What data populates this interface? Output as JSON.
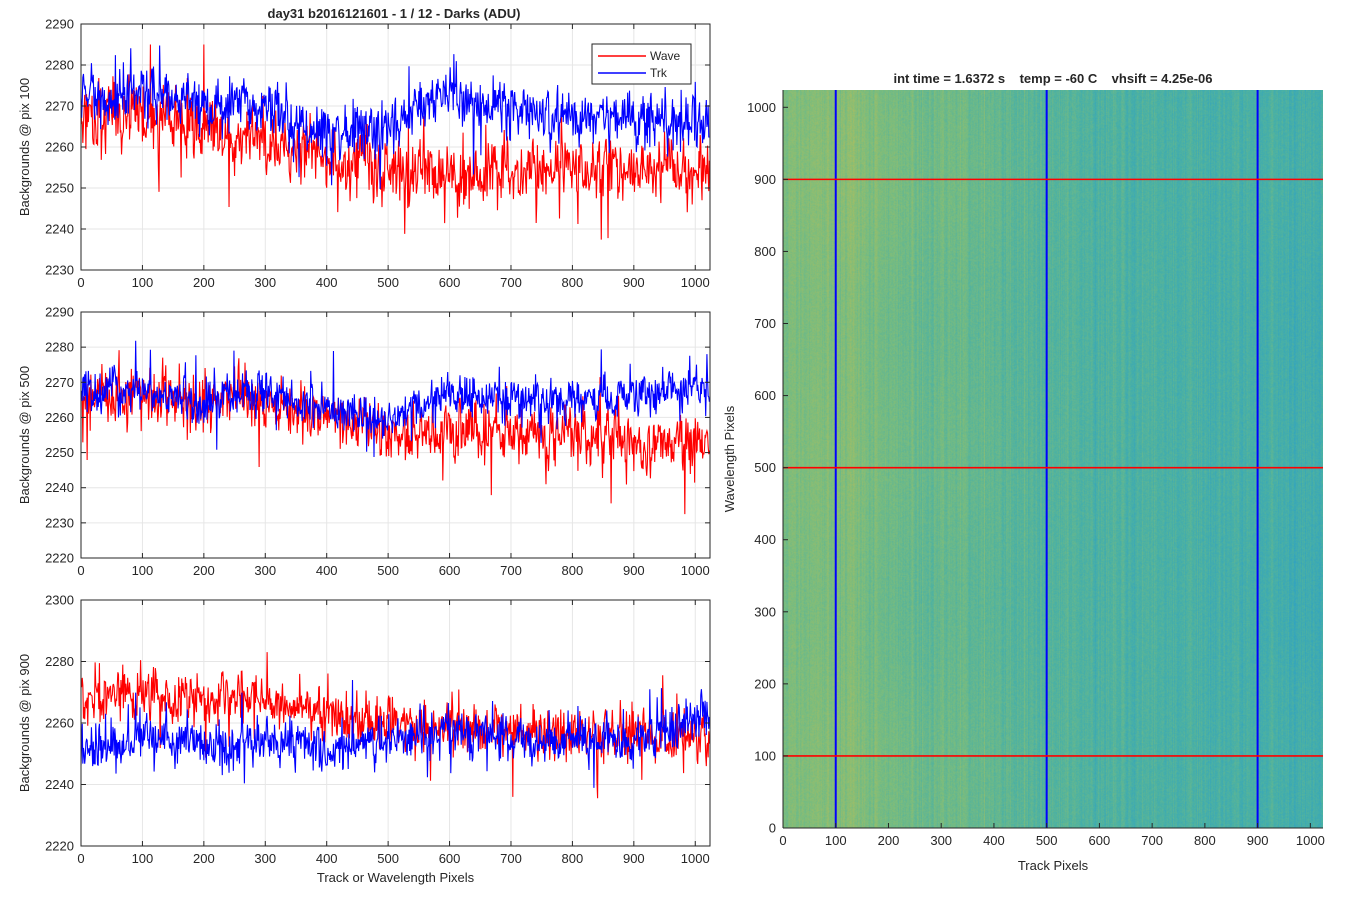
{
  "figure": {
    "title": "day31 b2016121601 - 1 / 12 - Darks (ADU)",
    "colors": {
      "wave": "#ff0000",
      "trk": "#0000ff",
      "grid": "#e6e6e6",
      "axis": "#262626"
    }
  },
  "chart_data": [
    {
      "type": "line",
      "id": "pix100",
      "title": "day31 b2016121601 - 1 / 12 - Darks (ADU)",
      "xlabel": "",
      "ylabel": "Backgrounds @ pix 100",
      "xlim": [
        0,
        1024
      ],
      "ylim": [
        2230,
        2290
      ],
      "xticks": [
        0,
        100,
        200,
        300,
        400,
        500,
        600,
        700,
        800,
        900,
        1000
      ],
      "yticks": [
        2230,
        2240,
        2250,
        2260,
        2270,
        2280,
        2290
      ],
      "grid": true,
      "legend": {
        "position": "top-right",
        "entries": [
          "Wave",
          "Trk"
        ]
      },
      "series": [
        {
          "name": "Wave",
          "color": "#ff0000",
          "points": 1024,
          "mean_profile_x": [
            0,
            100,
            200,
            300,
            400,
            500,
            600,
            700,
            800,
            900,
            1024
          ],
          "mean_profile_y": [
            2268,
            2268,
            2264,
            2262,
            2258,
            2255,
            2254,
            2254,
            2255,
            2255,
            2254
          ],
          "noise_amplitude": 6.5,
          "min": 2230,
          "max": 2285
        },
        {
          "name": "Trk",
          "color": "#0000ff",
          "points": 1024,
          "mean_profile_x": [
            0,
            100,
            200,
            300,
            400,
            500,
            600,
            700,
            800,
            900,
            1024
          ],
          "mean_profile_y": [
            2271,
            2273,
            2271,
            2269,
            2262,
            2266,
            2272,
            2268,
            2267,
            2266,
            2266
          ],
          "noise_amplitude": 5.5,
          "min": 2246,
          "max": 2288
        }
      ]
    },
    {
      "type": "line",
      "id": "pix500",
      "title": "",
      "xlabel": "",
      "ylabel": "Backgrounds @ pix 500",
      "xlim": [
        0,
        1024
      ],
      "ylim": [
        2220,
        2290
      ],
      "xticks": [
        0,
        100,
        200,
        300,
        400,
        500,
        600,
        700,
        800,
        900,
        1000
      ],
      "yticks": [
        2220,
        2230,
        2240,
        2250,
        2260,
        2270,
        2280,
        2290
      ],
      "grid": true,
      "series": [
        {
          "name": "Wave",
          "color": "#ff0000",
          "points": 1024,
          "mean_profile_x": [
            0,
            100,
            200,
            300,
            400,
            500,
            600,
            700,
            800,
            900,
            1024
          ],
          "mean_profile_y": [
            2266,
            2267,
            2265,
            2265,
            2261,
            2255,
            2256,
            2255,
            2256,
            2253,
            2253
          ],
          "noise_amplitude": 6.5,
          "min": 2229,
          "max": 2288
        },
        {
          "name": "Trk",
          "color": "#0000ff",
          "points": 1024,
          "mean_profile_x": [
            0,
            100,
            200,
            300,
            400,
            500,
            600,
            700,
            800,
            900,
            1024
          ],
          "mean_profile_y": [
            2268,
            2268,
            2264,
            2268,
            2263,
            2258,
            2266,
            2265,
            2265,
            2267,
            2268
          ],
          "noise_amplitude": 5,
          "min": 2241,
          "max": 2285
        }
      ]
    },
    {
      "type": "line",
      "id": "pix900",
      "title": "",
      "xlabel": "Track or Wavelength Pixels",
      "ylabel": "Backgrounds @ pix 900",
      "xlim": [
        0,
        1024
      ],
      "ylim": [
        2220,
        2300
      ],
      "xticks": [
        0,
        100,
        200,
        300,
        400,
        500,
        600,
        700,
        800,
        900,
        1000
      ],
      "yticks": [
        2220,
        2240,
        2260,
        2280,
        2300
      ],
      "grid": true,
      "series": [
        {
          "name": "Wave",
          "color": "#ff0000",
          "points": 1024,
          "mean_profile_x": [
            0,
            100,
            200,
            300,
            400,
            500,
            600,
            700,
            800,
            900,
            1024
          ],
          "mean_profile_y": [
            2270,
            2270,
            2268,
            2268,
            2262,
            2260,
            2259,
            2258,
            2257,
            2257,
            2253
          ],
          "noise_amplitude": 6.5,
          "min": 2227,
          "max": 2291
        },
        {
          "name": "Trk",
          "color": "#0000ff",
          "points": 1024,
          "mean_profile_x": [
            0,
            100,
            200,
            300,
            400,
            500,
            600,
            700,
            800,
            900,
            1024
          ],
          "mean_profile_y": [
            2250,
            2255,
            2252,
            2255,
            2250,
            2255,
            2258,
            2255,
            2254,
            2254,
            2263
          ],
          "noise_amplitude": 6,
          "min": 2232,
          "max": 2274
        }
      ]
    },
    {
      "type": "heatmap",
      "id": "image",
      "title": "int time = 1.6372 s    temp = -60 C    vhsift = 4.25e-06",
      "xlabel": "Track Pixels",
      "ylabel": "Wavelength Pixels",
      "xlim": [
        0,
        1024
      ],
      "ylim": [
        0,
        1024
      ],
      "xticks": [
        0,
        100,
        200,
        300,
        400,
        500,
        600,
        700,
        800,
        900,
        1000
      ],
      "yticks": [
        0,
        100,
        200,
        300,
        400,
        500,
        600,
        700,
        800,
        900,
        1000
      ],
      "grid": false,
      "colormap": "parula",
      "colormap_colors": [
        "#2a9fc9",
        "#4bb1a4",
        "#7dbd7c",
        "#b5bd5a"
      ],
      "column_intensity_x": [
        0,
        100,
        200,
        300,
        400,
        500,
        600,
        700,
        800,
        900,
        1024
      ],
      "column_intensity": [
        0.66,
        0.72,
        0.6,
        0.55,
        0.48,
        0.42,
        0.36,
        0.33,
        0.32,
        0.3,
        0.28
      ],
      "vertical_lines": {
        "x": [
          100,
          500,
          900
        ],
        "color": "#0000ff"
      },
      "horizontal_lines": {
        "y": [
          100,
          500,
          900
        ],
        "color": "#ff0000"
      }
    }
  ]
}
